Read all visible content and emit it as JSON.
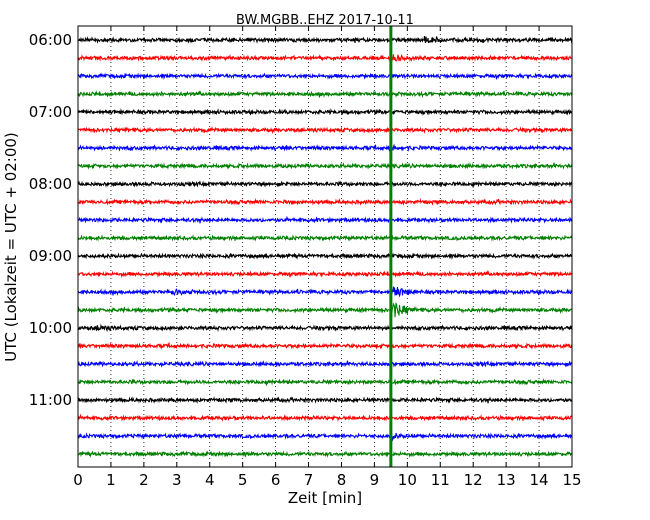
{
  "chart_data": {
    "type": "line",
    "title": "BW.MGBB..EHZ 2017-10-11",
    "xlabel": "Zeit  [min]",
    "ylabel": "UTC (Lokalzeit = UTC + 02:00)",
    "xlim": [
      0,
      15
    ],
    "x_ticks": [
      "0",
      "1",
      "2",
      "3",
      "4",
      "5",
      "6",
      "7",
      "8",
      "9",
      "10",
      "11",
      "12",
      "13",
      "14",
      "15"
    ],
    "y_ticks": [
      "06:00",
      "07:00",
      "08:00",
      "09:00",
      "10:00",
      "11:00"
    ],
    "grid": "vertical dotted",
    "trace_start_times": [
      "06:00",
      "06:15",
      "06:30",
      "06:45",
      "07:00",
      "07:15",
      "07:30",
      "07:45",
      "08:00",
      "08:15",
      "08:30",
      "08:45",
      "09:00",
      "09:15",
      "09:30",
      "09:45",
      "10:00",
      "10:15",
      "10:30",
      "10:45",
      "11:00",
      "11:15",
      "11:30",
      "11:45"
    ],
    "trace_colors": [
      "#000000",
      "#ff0000",
      "#0000ff",
      "#008000"
    ],
    "event_marker": {
      "x": 9.5,
      "color": "#008000"
    },
    "events": [
      {
        "time": "09:30",
        "x": 9.55,
        "amplitude": 1.6
      },
      {
        "time": "09:45",
        "x": 9.55,
        "amplitude": 2.2
      },
      {
        "time": "06:15",
        "x": 9.6,
        "amplitude": 0.6
      },
      {
        "time": "07:30",
        "x": 9.45,
        "amplitude": 0.5
      },
      {
        "time": "11:30",
        "x": 9.5,
        "amplitude": 0.6
      },
      {
        "time": "06:00",
        "x": 10.55,
        "amplitude": 0.5
      },
      {
        "time": "09:30",
        "x": 2.9,
        "amplitude": 0.5
      },
      {
        "time": "10:00",
        "x": 0.6,
        "amplitude": 0.5
      }
    ]
  }
}
